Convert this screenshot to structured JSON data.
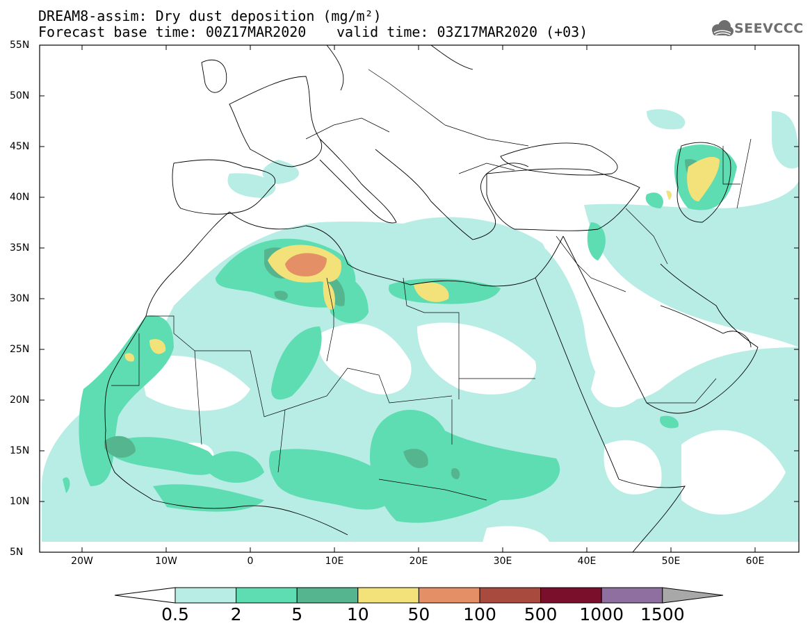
{
  "header": {
    "title": "DREAM8-assim: Dry dust deposition (mg/m²)",
    "base_time": "Forecast base time: 00Z17MAR2020",
    "valid_time": "valid time: 03Z17MAR2020 (+03)"
  },
  "logo": {
    "text": "SEEVCCC",
    "icon": "cloud-logo-icon"
  },
  "map": {
    "lat_labels": [
      "55N",
      "50N",
      "45N",
      "40N",
      "35N",
      "30N",
      "25N",
      "20N",
      "15N",
      "10N",
      "5N"
    ],
    "lon_labels": [
      "20W",
      "10W",
      "0",
      "10E",
      "20E",
      "30E",
      "40E",
      "50E",
      "60E"
    ],
    "extent": {
      "lon_min": -25,
      "lon_max": 65,
      "lat_min": 5,
      "lat_max": 55
    }
  },
  "colorbar": {
    "labels": [
      "0.5",
      "2",
      "5",
      "10",
      "50",
      "100",
      "500",
      "1000",
      "1500"
    ],
    "colors": [
      "#b8ede5",
      "#5edcb2",
      "#55b58f",
      "#f3e27a",
      "#e58f66",
      "#a84a3d",
      "#7a0f2b",
      "#8f6f9f"
    ],
    "under_color": "#ffffff",
    "over_color": "#a8a8a8"
  }
}
